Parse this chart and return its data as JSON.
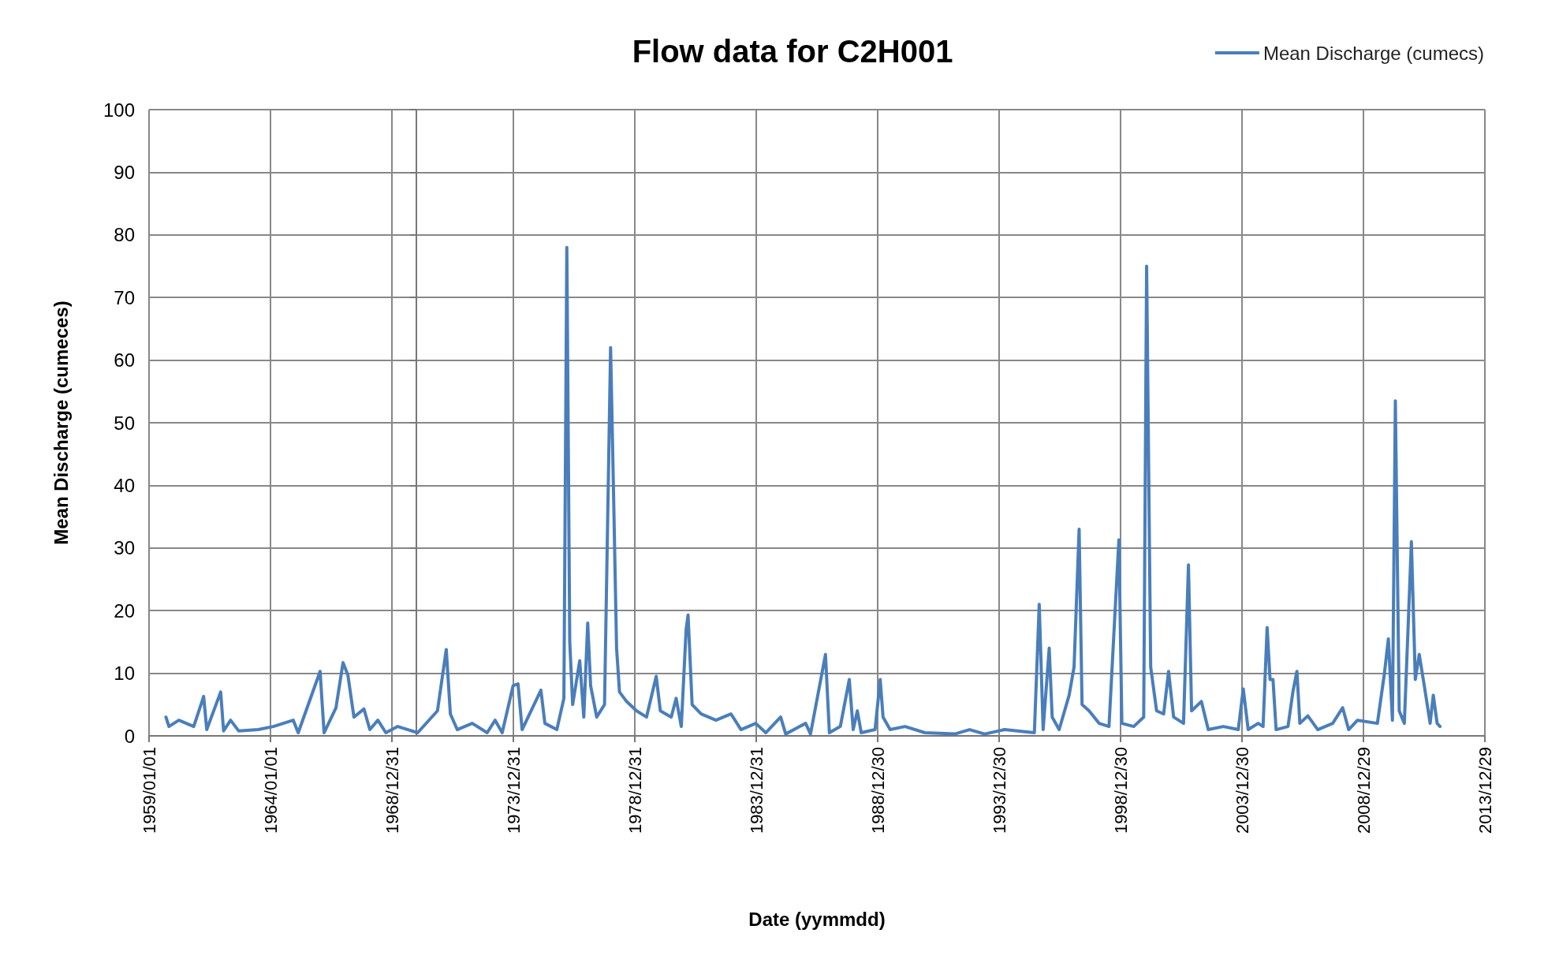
{
  "chart_data": {
    "type": "line",
    "title": "Flow data for C2H001",
    "xlabel": "Date (yymmdd)",
    "ylabel": "Mean Discharge (cumeces)",
    "xlim": [
      "1959-01-01",
      "2013-12-29"
    ],
    "xticks": [
      {
        "value": "1959-01-01",
        "label": "1959/01/01"
      },
      {
        "value": "1964-01-01",
        "label": "1964/01/01"
      },
      {
        "value": "1968-12-31",
        "label": "1968/12/31"
      },
      {
        "value": "1973-12-31",
        "label": "1973/12/31"
      },
      {
        "value": "1978-12-31",
        "label": "1978/12/31"
      },
      {
        "value": "1983-12-31",
        "label": "1983/12/31"
      },
      {
        "value": "1988-12-30",
        "label": "1988/12/30"
      },
      {
        "value": "1993-12-30",
        "label": "1993/12/30"
      },
      {
        "value": "1998-12-30",
        "label": "1998/12/30"
      },
      {
        "value": "2003-12-30",
        "label": "2003/12/30"
      },
      {
        "value": "2008-12-29",
        "label": "2008/12/29"
      },
      {
        "value": "2013-12-29",
        "label": "2013/12/29"
      }
    ],
    "ylim": [
      0,
      100
    ],
    "yticks": [
      0,
      10,
      20,
      30,
      40,
      50,
      60,
      70,
      80,
      90,
      100
    ],
    "grid": true,
    "legend": "top right",
    "marker": "none",
    "line_style": "solid",
    "series": [
      {
        "name": "Mean Discharge (cumecs)",
        "color": "#4a7ebb",
        "x": [
          "1959-09-12",
          "1959-10-27",
          "1960-03-24",
          "1960-11-03",
          "1961-04-01",
          "1961-05-18",
          "1961-12-13",
          "1962-01-26",
          "1962-05-11",
          "1962-09-09",
          "1963-07-02",
          "1964-02-13",
          "1964-12-09",
          "1965-02-21",
          "1966-01-16",
          "1966-03-17",
          "1966-09-12",
          "1966-12-27",
          "1967-03-10",
          "1967-06-09",
          "1967-11-06",
          "1968-02-03",
          "1968-06-03",
          "1968-10-01",
          "1969-03-28",
          "1970-01-22",
          "1970-11-16",
          "1971-03-28",
          "1971-05-29",
          "1971-09-09",
          "1972-04-22",
          "1972-12-02",
          "1973-04-01",
          "1973-07-16",
          "1973-12-27",
          "1974-03-11",
          "1974-05-12",
          "1975-02-18",
          "1975-04-19",
          "1975-10-16",
          "1976-01-30",
          "1976-03-14",
          "1976-04-27",
          "1976-06-10",
          "1976-09-24",
          "1976-11-24",
          "1977-01-22",
          "1977-03-07",
          "1977-06-06",
          "1977-10-02",
          "1978-01-01",
          "1978-02-14",
          "1978-04-01",
          "1978-05-15",
          "1978-08-29",
          "1979-01-26",
          "1979-06-25",
          "1979-11-18",
          "1980-01-19",
          "1980-07-01",
          "1980-09-13",
          "1980-11-29",
          "1981-02-10",
          "1981-03-11",
          "1981-05-11",
          "1981-09-23",
          "1982-05-04",
          "1982-12-17",
          "1983-05-16",
          "1983-12-24",
          "1984-05-22",
          "1985-01-01",
          "1985-03-18",
          "1986-01-12",
          "1986-03-26",
          "1986-11-06",
          "1987-01-04",
          "1987-06-17",
          "1987-10-30",
          "1987-12-28",
          "1988-02-28",
          "1988-04-27",
          "1988-11-21",
          "1989-02-06",
          "1989-03-21",
          "1989-07-05",
          "1990-02-14",
          "1990-12-10",
          "1992-03-03",
          "1992-10-12",
          "1993-05-26",
          "1994-03-20",
          "1995-06-13",
          "1995-08-25",
          "1995-10-23",
          "1996-01-22",
          "1996-03-07",
          "1996-06-20",
          "1996-11-17",
          "1997-01-30",
          "1997-04-16",
          "1997-05-30",
          "1997-09-13",
          "1998-02-10",
          "1998-07-09",
          "1998-11-03",
          "1998-12-05",
          "1999-01-19",
          "1999-07-16",
          "1999-12-13",
          "2000-01-26",
          "2000-03-27",
          "2000-06-24",
          "2000-10-08",
          "2000-12-21",
          "2001-03-07",
          "2001-08-03",
          "2001-10-16",
          "2001-12-02",
          "2002-04-28",
          "2002-08-10",
          "2003-03-25",
          "2003-11-04",
          "2004-01-18",
          "2004-04-01",
          "2004-08-29",
          "2004-11-11",
          "2005-01-11",
          "2005-02-24",
          "2005-04-09",
          "2005-05-26",
          "2005-11-21",
          "2006-02-02",
          "2006-04-04",
          "2006-05-18",
          "2006-09-15",
          "2007-02-12",
          "2007-09-24",
          "2008-02-20",
          "2008-05-21",
          "2008-10-01",
          "2009-07-27",
          "2009-11-10",
          "2010-01-08",
          "2010-03-10",
          "2010-04-23",
          "2010-06-20",
          "2010-09-05",
          "2010-11-03",
          "2010-12-20",
          "2011-02-17",
          "2011-04-17",
          "2011-07-02",
          "2011-09-28",
          "2011-11-14",
          "2012-01-11",
          "2012-02-24"
        ],
        "values": [
          3,
          1.5,
          2.5,
          1.5,
          6.3,
          1,
          7,
          0.8,
          2.5,
          0.8,
          1,
          1.5,
          2.5,
          0.5,
          10.3,
          0.5,
          4.5,
          11.7,
          9.7,
          3,
          4.3,
          1,
          2.5,
          0.5,
          1.5,
          0.5,
          4,
          13.8,
          3.5,
          1,
          2,
          0.5,
          2.5,
          0.5,
          8,
          8.3,
          1,
          7.3,
          2,
          1,
          6,
          78,
          15,
          5,
          12,
          3,
          18,
          8,
          3,
          5,
          62,
          39,
          14,
          7,
          5.5,
          4,
          3,
          9.5,
          4,
          3,
          6,
          1.5,
          17,
          19.3,
          5,
          3.5,
          2.5,
          3.5,
          1,
          2,
          0.5,
          3,
          0.3,
          2,
          0.3,
          13,
          0.5,
          1.5,
          9,
          1,
          4,
          0.5,
          1,
          9,
          3,
          1,
          1.5,
          0.5,
          0.3,
          1,
          0.3,
          1,
          0.5,
          21,
          1,
          14,
          3,
          1,
          6.5,
          11,
          33,
          5,
          4,
          2,
          1.5,
          25,
          31.3,
          2,
          1.5,
          3,
          75,
          11,
          4,
          3.5,
          10.3,
          3,
          2,
          27.3,
          4,
          5.5,
          1,
          1.5,
          1,
          7.5,
          1,
          2,
          1.5,
          17.3,
          9,
          9,
          1,
          1.5,
          7,
          10.3,
          2,
          3.2,
          1,
          2,
          4.5,
          1,
          2.5,
          2,
          10,
          15.5,
          2.5,
          53.5,
          4,
          2,
          18,
          31,
          9,
          13,
          8,
          2,
          6.5,
          2,
          1.5
        ]
      }
    ]
  }
}
